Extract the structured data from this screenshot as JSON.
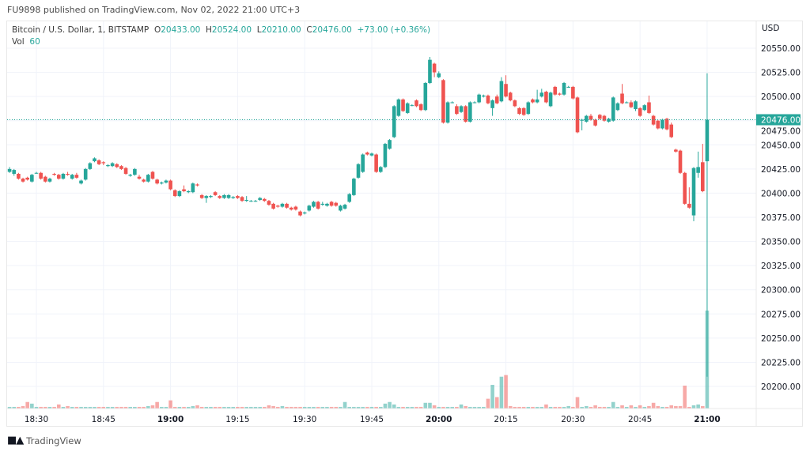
{
  "header": {
    "published": "FU9898 published on TradingView.com, Nov 02, 2022 21:00 UTC+3"
  },
  "legend": {
    "symbol": "Bitcoin / U.S. Dollar, 1, BITSTAMP",
    "o_label": "O",
    "o": "20433.00",
    "h_label": "H",
    "h": "20524.00",
    "l_label": "L",
    "l": "20210.00",
    "c_label": "C",
    "c": "20476.00",
    "change": "+73.00 (+0.36%)",
    "vol_label": "Vol",
    "vol": "60"
  },
  "footer": {
    "brand": "TradingView",
    "logo_text": "TV"
  },
  "chart_data": {
    "type": "candlestick",
    "currency": "USD",
    "interval_minutes": 1,
    "last_price": "20476.00",
    "colors": {
      "up": "#26a69a",
      "down": "#ef5350",
      "grid": "#f0f3fa"
    },
    "grid": true,
    "ylim": [
      20180,
      20560
    ],
    "y_ticks": [
      "20550.00",
      "20525.00",
      "20500.00",
      "20475.00",
      "20450.00",
      "20425.00",
      "20400.00",
      "20375.00",
      "20350.00",
      "20325.00",
      "20300.00",
      "20275.00",
      "20250.00",
      "20225.00",
      "20200.00"
    ],
    "x_ticks": [
      {
        "label": "18:30",
        "t": "18:30",
        "bold": false
      },
      {
        "label": "18:45",
        "t": "18:45",
        "bold": false
      },
      {
        "label": "19:00",
        "t": "19:00",
        "bold": true
      },
      {
        "label": "19:15",
        "t": "19:15",
        "bold": false
      },
      {
        "label": "19:30",
        "t": "19:30",
        "bold": false
      },
      {
        "label": "19:45",
        "t": "19:45",
        "bold": false
      },
      {
        "label": "20:00",
        "t": "20:00",
        "bold": true
      },
      {
        "label": "20:15",
        "t": "20:15",
        "bold": false
      },
      {
        "label": "20:30",
        "t": "20:30",
        "bold": false
      },
      {
        "label": "20:45",
        "t": "20:45",
        "bold": false
      },
      {
        "label": "21:00",
        "t": "21:00",
        "bold": true
      }
    ],
    "candles_columns": [
      "time",
      "open",
      "high",
      "low",
      "close",
      "volume"
    ],
    "candles": [
      [
        "18:24",
        20422,
        20427,
        20421,
        20425,
        1
      ],
      [
        "18:25",
        20420,
        20425,
        20418,
        20424,
        1
      ],
      [
        "18:26",
        20420,
        20421,
        20414,
        20415,
        1
      ],
      [
        "18:27",
        20415,
        20416,
        20411,
        20412,
        1.5
      ],
      [
        "18:28",
        20416,
        20417,
        20413,
        20414,
        4
      ],
      [
        "18:29",
        20412,
        20420,
        20411,
        20419,
        3
      ],
      [
        "18:30",
        20421,
        20422,
        20420,
        20421,
        1
      ],
      [
        "18:31",
        20421,
        20422,
        20414,
        20415,
        1
      ],
      [
        "18:32",
        20417,
        20418,
        20411,
        20412,
        1
      ],
      [
        "18:33",
        20412,
        20416,
        20411,
        20415,
        1
      ],
      [
        "18:34",
        20420,
        20421,
        20418,
        20419,
        1
      ],
      [
        "18:35",
        20419,
        20420,
        20414,
        20415,
        2.5
      ],
      [
        "18:36",
        20415,
        20421,
        20414,
        20420,
        1
      ],
      [
        "18:37",
        20420,
        20422,
        20418,
        20419,
        1.5
      ],
      [
        "18:38",
        20415,
        20420,
        20414,
        20419,
        1
      ],
      [
        "18:39",
        20419,
        20421,
        20415,
        20416,
        1
      ],
      [
        "18:40",
        20410,
        20414,
        20409,
        20413,
        1
      ],
      [
        "18:41",
        20414,
        20426,
        20413,
        20425,
        1
      ],
      [
        "18:42",
        20425,
        20432,
        20424,
        20431,
        1
      ],
      [
        "18:43",
        20433,
        20437,
        20432,
        20436,
        1
      ],
      [
        "18:44",
        20434,
        20435,
        20429,
        20430,
        1
      ],
      [
        "18:45",
        20432,
        20433,
        20429,
        20431,
        1
      ],
      [
        "18:46",
        20428,
        20430,
        20427,
        20429,
        1
      ],
      [
        "18:47",
        20428,
        20432,
        20427,
        20431,
        1
      ],
      [
        "18:48",
        20430,
        20431,
        20426,
        20427,
        1
      ],
      [
        "18:49",
        20428,
        20429,
        20424,
        20425,
        1
      ],
      [
        "18:50",
        20426,
        20427,
        20419,
        20420,
        1
      ],
      [
        "18:51",
        20418,
        20420,
        20417,
        20419,
        1
      ],
      [
        "18:52",
        20419,
        20426,
        20418,
        20425,
        1
      ],
      [
        "18:53",
        20417,
        20419,
        20414,
        20415,
        1
      ],
      [
        "18:54",
        20414,
        20415,
        20411,
        20412,
        1
      ],
      [
        "18:55",
        20412,
        20420,
        20411,
        20419,
        1.5
      ],
      [
        "18:56",
        20422,
        20423,
        20414,
        20415,
        2
      ],
      [
        "18:57",
        20414,
        20415,
        20409,
        20410,
        4
      ],
      [
        "18:58",
        20410,
        20412,
        20409,
        20411,
        1
      ],
      [
        "18:59",
        20411,
        20414,
        20410,
        20413,
        1
      ],
      [
        "19:00",
        20413,
        20414,
        20403,
        20404,
        5
      ],
      [
        "19:01",
        20403,
        20404,
        20396,
        20397,
        1
      ],
      [
        "19:02",
        20397,
        20403,
        20396,
        20402,
        1
      ],
      [
        "19:03",
        20404,
        20408,
        20401,
        20402,
        1
      ],
      [
        "19:04",
        20401,
        20403,
        20400,
        20402,
        1
      ],
      [
        "19:05",
        20401,
        20411,
        20400,
        20410,
        1.5
      ],
      [
        "19:06",
        20409,
        20410,
        20407,
        20408,
        2
      ],
      [
        "19:07",
        20398,
        20399,
        20394,
        20395,
        1
      ],
      [
        "19:08",
        20395,
        20398,
        20390,
        20397,
        1
      ],
      [
        "19:09",
        20396,
        20398,
        20395,
        20397,
        1
      ],
      [
        "19:10",
        20401,
        20402,
        20397,
        20398,
        1
      ],
      [
        "19:11",
        20397,
        20398,
        20394,
        20395,
        1
      ],
      [
        "19:12",
        20395,
        20399,
        20394,
        20398,
        1
      ],
      [
        "19:13",
        20395,
        20399,
        20394,
        20398,
        1
      ],
      [
        "19:14",
        20395,
        20397,
        20394,
        20396,
        1
      ],
      [
        "19:15",
        20397,
        20398,
        20394,
        20395,
        1
      ],
      [
        "19:16",
        20396,
        20397,
        20391,
        20392,
        1
      ],
      [
        "19:17",
        20392,
        20397,
        20391,
        20393,
        1
      ],
      [
        "19:18",
        20392,
        20393,
        20391,
        20392,
        1
      ],
      [
        "19:19",
        20392,
        20393,
        20391,
        20392,
        1
      ],
      [
        "19:20",
        20393,
        20396,
        20392,
        20395,
        1
      ],
      [
        "19:21",
        20394,
        20395,
        20391,
        20392,
        1
      ],
      [
        "19:22",
        20392,
        20393,
        20387,
        20388,
        2
      ],
      [
        "19:23",
        20389,
        20390,
        20383,
        20384,
        1.5
      ],
      [
        "19:24",
        20387,
        20388,
        20385,
        20386,
        1
      ],
      [
        "19:25",
        20386,
        20390,
        20385,
        20389,
        1.5
      ],
      [
        "19:26",
        20389,
        20390,
        20384,
        20385,
        1
      ],
      [
        "19:27",
        20385,
        20386,
        20382,
        20383,
        1
      ],
      [
        "19:28",
        20386,
        20387,
        20382,
        20383,
        1
      ],
      [
        "19:29",
        20381,
        20382,
        20376,
        20377,
        1
      ],
      [
        "19:30",
        20379,
        20381,
        20378,
        20380,
        1
      ],
      [
        "19:31",
        20382,
        20388,
        20381,
        20387,
        1
      ],
      [
        "19:32",
        20386,
        20392,
        20385,
        20391,
        1
      ],
      [
        "19:33",
        20391,
        20392,
        20383,
        20384,
        1
      ],
      [
        "19:34",
        20388,
        20391,
        20387,
        20389,
        1
      ],
      [
        "19:35",
        20387,
        20390,
        20386,
        20389,
        1
      ],
      [
        "19:36",
        20391,
        20392,
        20386,
        20387,
        1
      ],
      [
        "19:37",
        20390,
        20391,
        20386,
        20387,
        1
      ],
      [
        "19:38",
        20382,
        20388,
        20381,
        20387,
        1
      ],
      [
        "19:39",
        20384,
        20389,
        20383,
        20388,
        4
      ],
      [
        "19:40",
        20391,
        20400,
        20390,
        20399,
        1
      ],
      [
        "19:41",
        20398,
        20416,
        20397,
        20415,
        1
      ],
      [
        "19:42",
        20416,
        20431,
        20415,
        20430,
        1
      ],
      [
        "19:43",
        20422,
        20441,
        20421,
        20440,
        1
      ],
      [
        "19:44",
        20442,
        20443,
        20439,
        20440,
        1
      ],
      [
        "19:45",
        20439,
        20442,
        20438,
        20441,
        1
      ],
      [
        "19:46",
        20440,
        20441,
        20421,
        20422,
        1
      ],
      [
        "19:47",
        20422,
        20428,
        20421,
        20427,
        1
      ],
      [
        "19:48",
        20427,
        20452,
        20426,
        20451,
        3
      ],
      [
        "19:49",
        20446,
        20456,
        20445,
        20455,
        4
      ],
      [
        "19:50",
        20458,
        20491,
        20457,
        20490,
        2.5
      ],
      [
        "19:51",
        20480,
        20498,
        20479,
        20497,
        1
      ],
      [
        "19:52",
        20497,
        20498,
        20484,
        20485,
        1
      ],
      [
        "19:53",
        20483,
        20494,
        20482,
        20493,
        1
      ],
      [
        "19:54",
        20491,
        20492,
        20490,
        20491,
        1
      ],
      [
        "19:55",
        20496,
        20497,
        20489,
        20490,
        1
      ],
      [
        "19:56",
        20492,
        20493,
        20485,
        20486,
        1
      ],
      [
        "19:57",
        20486,
        20515,
        20485,
        20514,
        3.5
      ],
      [
        "19:58",
        20514,
        20541,
        20513,
        20538,
        3.5
      ],
      [
        "19:59",
        20534,
        20535,
        20520,
        20525,
        2
      ],
      [
        "20:00",
        20520,
        20526,
        20519,
        20524,
        1
      ],
      [
        "20:01",
        20517,
        20518,
        20472,
        20473,
        1
      ],
      [
        "20:02",
        20473,
        20495,
        20472,
        20494,
        1
      ],
      [
        "20:03",
        20494,
        20495,
        20493,
        20494,
        1
      ],
      [
        "20:04",
        20490,
        20492,
        20481,
        20482,
        1
      ],
      [
        "20:05",
        20484,
        20491,
        20483,
        20490,
        2.5
      ],
      [
        "20:06",
        20490,
        20491,
        20473,
        20474,
        1.5
      ],
      [
        "20:07",
        20474,
        20495,
        20473,
        20494,
        1
      ],
      [
        "20:08",
        20494,
        20495,
        20493,
        20494,
        1
      ],
      [
        "20:09",
        20494,
        20503,
        20493,
        20502,
        1
      ],
      [
        "20:10",
        20500,
        20502,
        20499,
        20501,
        1
      ],
      [
        "20:11",
        20501,
        20502,
        20492,
        20493,
        6
      ],
      [
        "20:12",
        20488,
        20497,
        20480,
        20496,
        14.5
      ],
      [
        "20:13",
        20500,
        20502,
        20492,
        20493,
        7
      ],
      [
        "20:14",
        20495,
        20520,
        20494,
        20516,
        19.5
      ],
      [
        "20:15",
        20513,
        20522,
        20499,
        20500,
        20.5
      ],
      [
        "20:16",
        20504,
        20505,
        20495,
        20496,
        1.5
      ],
      [
        "20:17",
        20496,
        20497,
        20489,
        20490,
        1
      ],
      [
        "20:18",
        20488,
        20489,
        20481,
        20482,
        1
      ],
      [
        "20:19",
        20488,
        20489,
        20480,
        20481,
        1
      ],
      [
        "20:20",
        20482,
        20495,
        20481,
        20494,
        1
      ],
      [
        "20:21",
        20497,
        20498,
        20493,
        20494,
        1
      ],
      [
        "20:22",
        20494,
        20507,
        20493,
        20497,
        1
      ],
      [
        "20:23",
        20500,
        20508,
        20499,
        20504,
        1
      ],
      [
        "20:24",
        20505,
        20506,
        20493,
        20494,
        2.5
      ],
      [
        "20:25",
        20490,
        20505,
        20489,
        20504,
        1
      ],
      [
        "20:26",
        20510,
        20511,
        20501,
        20502,
        1
      ],
      [
        "20:27",
        20503,
        20504,
        20501,
        20502,
        1
      ],
      [
        "20:28",
        20502,
        20515,
        20501,
        20514,
        1
      ],
      [
        "20:29",
        20510,
        20511,
        20509,
        20510,
        1.5
      ],
      [
        "20:30",
        20510,
        20511,
        20497,
        20498,
        1
      ],
      [
        "20:31",
        20499,
        20500,
        20462,
        20463,
        7
      ],
      [
        "20:32",
        20475,
        20477,
        20465,
        20476,
        1
      ],
      [
        "20:33",
        20474,
        20481,
        20473,
        20480,
        1.5
      ],
      [
        "20:34",
        20480,
        20482,
        20475,
        20476,
        1
      ],
      [
        "20:35",
        20476,
        20477,
        20469,
        20470,
        2
      ],
      [
        "20:36",
        20481,
        20482,
        20476,
        20477,
        1
      ],
      [
        "20:37",
        20480,
        20481,
        20474,
        20475,
        1
      ],
      [
        "20:38",
        20474,
        20478,
        20473,
        20477,
        1
      ],
      [
        "20:39",
        20475,
        20500,
        20474,
        20499,
        4
      ],
      [
        "20:40",
        20486,
        20494,
        20485,
        20493,
        1
      ],
      [
        "20:41",
        20503,
        20513,
        20492,
        20493,
        2
      ],
      [
        "20:42",
        20494,
        20495,
        20493,
        20494,
        1
      ],
      [
        "20:43",
        20494,
        20496,
        20488,
        20489,
        2
      ],
      [
        "20:44",
        20487,
        20496,
        20485,
        20495,
        1
      ],
      [
        "20:45",
        20488,
        20489,
        20479,
        20480,
        2
      ],
      [
        "20:46",
        20486,
        20492,
        20485,
        20491,
        1
      ],
      [
        "20:47",
        20494,
        20501,
        20482,
        20483,
        1.5
      ],
      [
        "20:48",
        20480,
        20481,
        20470,
        20471,
        3.5
      ],
      [
        "20:49",
        20475,
        20476,
        20466,
        20467,
        1.5
      ],
      [
        "20:50",
        20467,
        20477,
        20466,
        20476,
        1
      ],
      [
        "20:51",
        20477,
        20478,
        20465,
        20466,
        1
      ],
      [
        "20:52",
        20471,
        20473,
        20457,
        20458,
        2
      ],
      [
        "20:53",
        20445,
        20446,
        20442,
        20443,
        1.5
      ],
      [
        "20:54",
        20444,
        20445,
        20420,
        20421,
        1.5
      ],
      [
        "20:55",
        20421,
        20422,
        20388,
        20389,
        14
      ],
      [
        "20:56",
        20389,
        20406,
        20384,
        20385,
        1
      ],
      [
        "20:57",
        20377,
        20427,
        20371,
        20426,
        2
      ],
      [
        "20:58",
        20421,
        20443,
        20416,
        20427,
        2.5
      ],
      [
        "20:59",
        20432,
        20451,
        20401,
        20402,
        1.5
      ],
      [
        "21:00",
        20433,
        20524,
        20210,
        20476,
        60
      ]
    ]
  }
}
